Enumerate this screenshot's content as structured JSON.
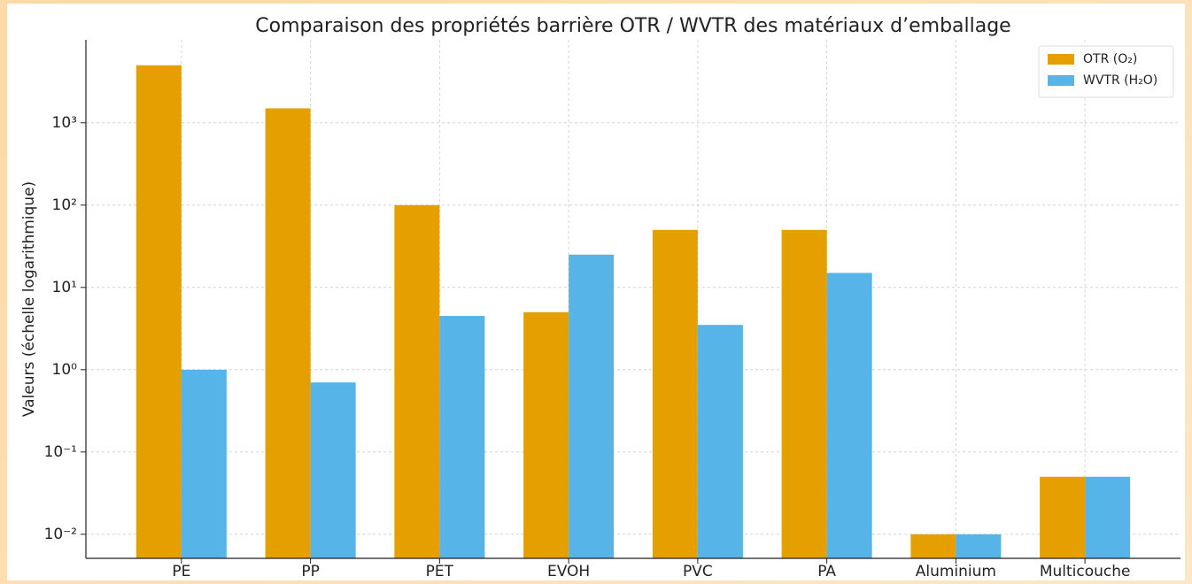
{
  "chart_data": {
    "type": "bar",
    "title": "Comparaison des propriétés barrière OTR / WVTR des matériaux d’emballage",
    "ylabel": "Valeurs (échelle logarithmique)",
    "categories": [
      "PE",
      "PP",
      "PET",
      "EVOH",
      "PVC",
      "PA",
      "Aluminium",
      "Multicouche"
    ],
    "series": [
      {
        "name": "OTR (O₂)",
        "color": "#E69F00",
        "values": [
          5000,
          1500,
          100,
          5,
          50,
          50,
          0.01,
          0.05
        ]
      },
      {
        "name": "WVTR (H₂O)",
        "color": "#56B4E9",
        "values": [
          1,
          0.7,
          4.5,
          25,
          3.5,
          15,
          0.01,
          0.05
        ]
      }
    ],
    "log_scale": true,
    "ylim": [
      0.0051,
      10200
    ],
    "yticks": [
      {
        "value": 0.01,
        "label": "10⁻²"
      },
      {
        "value": 0.1,
        "label": "10⁻¹"
      },
      {
        "value": 1,
        "label": "10⁰"
      },
      {
        "value": 10,
        "label": "10¹"
      },
      {
        "value": 100,
        "label": "10²"
      },
      {
        "value": 1000,
        "label": "10³"
      }
    ],
    "grid": true,
    "legend": "upper right"
  }
}
